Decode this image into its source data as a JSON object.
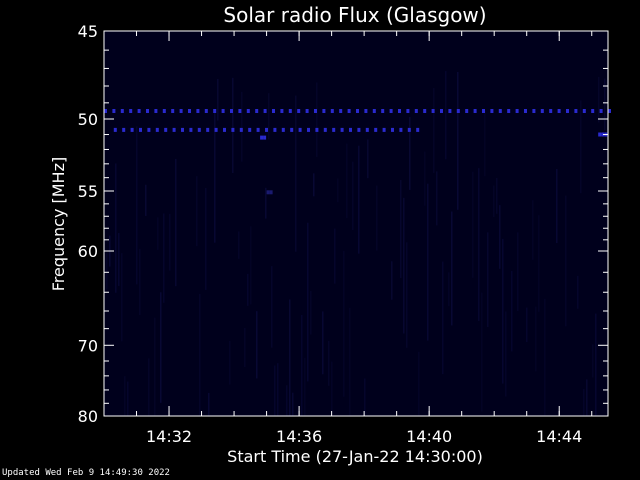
{
  "chart_data": {
    "type": "heatmap",
    "title": "Solar radio Flux (Glasgow)",
    "xlabel": "Start Time (27-Jan-22 14:30:00)",
    "ylabel": "Frequency [MHz]",
    "x_unit": "minutes after 14:30:00",
    "xlim": [
      0,
      15.5
    ],
    "ylim": [
      45,
      80
    ],
    "y_axis_direction": "increasing-downward",
    "x_ticks": [
      {
        "value": 2,
        "label": "14:32"
      },
      {
        "value": 6,
        "label": "14:36"
      },
      {
        "value": 10,
        "label": "14:40"
      },
      {
        "value": 14,
        "label": "14:44"
      }
    ],
    "y_ticks": [
      {
        "value": 45,
        "label": "45"
      },
      {
        "value": 50,
        "label": "50"
      },
      {
        "value": 55,
        "label": "55"
      },
      {
        "value": 60,
        "label": "60"
      },
      {
        "value": 70,
        "label": "70"
      },
      {
        "value": 80,
        "label": "80"
      }
    ],
    "colors": {
      "background": "#000000",
      "plot_background": "#00001c",
      "emission_strong": "#2a2ad0",
      "emission_weak": "#1a1a70",
      "axes": "#ffffff"
    },
    "bands": [
      {
        "frequency_mhz": 49.5,
        "t_start": 0,
        "t_end": 15.5,
        "intensity": "strong"
      },
      {
        "frequency_mhz": 50.7,
        "t_start": 0.3,
        "t_end": 9.6,
        "intensity": "medium"
      },
      {
        "frequency_mhz": 51.2,
        "t_start": 4.8,
        "t_end": 4.9,
        "intensity": "medium"
      },
      {
        "frequency_mhz": 55.1,
        "t_start": 5.0,
        "t_end": 5.1,
        "intensity": "weak"
      },
      {
        "frequency_mhz": 51.0,
        "t_start": 15.2,
        "t_end": 15.4,
        "intensity": "medium"
      }
    ]
  },
  "footer": {
    "updated": "Updated Wed Feb  9 14:49:30 2022"
  }
}
